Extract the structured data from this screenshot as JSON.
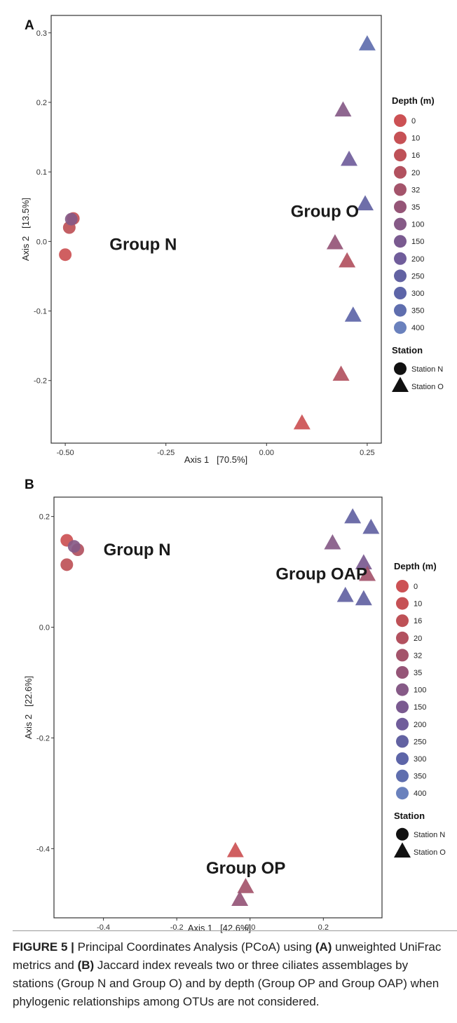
{
  "depth_levels": [
    "0",
    "10",
    "16",
    "20",
    "32",
    "35",
    "100",
    "150",
    "200",
    "250",
    "300",
    "350",
    "400"
  ],
  "depth_colors": [
    "#cc5154",
    "#c65155",
    "#be5157",
    "#b2515f",
    "#a4546b",
    "#955577",
    "#865a87",
    "#7a5a90",
    "#705d9b",
    "#6262a2",
    "#5d65a8",
    "#5f6eae",
    "#6a81bd"
  ],
  "caption": {
    "figure_label": "FIGURE 5 |",
    "text_1": " Principal Coordinates Analysis (PCoA) using ",
    "bold_a": "(A)",
    "text_2": " unweighted UniFrac metrics and ",
    "bold_b": "(B)",
    "text_3": " Jaccard index reveals two or three ciliates assemblages by stations (Group N and Group O) and by depth (Group OP and Group OAP) when phylogenic relationships among OTUs are not considered."
  },
  "chart_data": [
    {
      "panel": "A",
      "type": "scatter",
      "xlabel": "Axis 1   [70.5%]",
      "ylabel": "Axis 2   [13.5%]",
      "xlim": [
        -0.535,
        0.285
      ],
      "ylim": [
        -0.29,
        0.325
      ],
      "xticks": [
        -0.5,
        -0.25,
        0.0,
        0.25
      ],
      "xtick_labels": [
        "-0.50",
        "-0.25",
        "0.00",
        "0.25"
      ],
      "yticks": [
        -0.2,
        -0.1,
        0.0,
        0.1,
        0.2,
        0.3
      ],
      "ytick_labels": [
        "-0.2",
        "-0.1",
        "0.0",
        "0.1",
        "0.2",
        "0.3"
      ],
      "legend_depth_title": "Depth (m)",
      "legend_station_title": "Station",
      "station_labels": [
        "Station N",
        "Station O"
      ],
      "annotations": [
        {
          "text": "Group N",
          "x": -0.39,
          "y": -0.012
        },
        {
          "text": "Group O",
          "x": 0.06,
          "y": 0.035
        }
      ],
      "points": [
        {
          "station": "N",
          "depth": "0",
          "x": -0.5,
          "y": -0.019
        },
        {
          "station": "N",
          "depth": "16",
          "x": -0.49,
          "y": 0.02
        },
        {
          "station": "N",
          "depth": "10",
          "x": -0.48,
          "y": 0.033
        },
        {
          "station": "N",
          "depth": "100",
          "x": -0.485,
          "y": 0.032
        },
        {
          "station": "O",
          "depth": "350",
          "x": 0.25,
          "y": 0.283
        },
        {
          "station": "O",
          "depth": "100",
          "x": 0.19,
          "y": 0.188
        },
        {
          "station": "O",
          "depth": "200",
          "x": 0.205,
          "y": 0.117
        },
        {
          "station": "O",
          "depth": "250",
          "x": 0.245,
          "y": 0.053
        },
        {
          "station": "O",
          "depth": "35",
          "x": 0.17,
          "y": -0.003
        },
        {
          "station": "O",
          "depth": "20",
          "x": 0.2,
          "y": -0.029
        },
        {
          "station": "O",
          "depth": "300",
          "x": 0.215,
          "y": -0.107
        },
        {
          "station": "O",
          "depth": "20",
          "x": 0.185,
          "y": -0.192
        },
        {
          "station": "O",
          "depth": "0",
          "x": 0.088,
          "y": -0.262
        }
      ]
    },
    {
      "panel": "B",
      "type": "scatter",
      "xlabel": "Axis 1   [42.6%]",
      "ylabel": "Axis 2   [22.6%]",
      "xlim": [
        -0.535,
        0.36
      ],
      "ylim": [
        -0.525,
        0.235
      ],
      "xticks": [
        -0.4,
        -0.2,
        0.0,
        0.2
      ],
      "xtick_labels": [
        "-0.4",
        "-0.2",
        "0.0",
        "0.2"
      ],
      "yticks": [
        -0.4,
        -0.2,
        0.0,
        0.2
      ],
      "ytick_labels": [
        "-0.4",
        "-0.2",
        "0.0",
        "0.2"
      ],
      "legend_depth_title": "Depth (m)",
      "legend_station_title": "Station",
      "station_labels": [
        "Station N",
        "Station O"
      ],
      "annotations": [
        {
          "text": "Group N",
          "x": -0.4,
          "y": 0.13
        },
        {
          "text": "Group OAP",
          "x": 0.07,
          "y": 0.086
        },
        {
          "text": "Group OP",
          "x": -0.12,
          "y": -0.445
        }
      ],
      "points": [
        {
          "station": "N",
          "depth": "0",
          "x": -0.5,
          "y": 0.157
        },
        {
          "station": "N",
          "depth": "16",
          "x": -0.5,
          "y": 0.113
        },
        {
          "station": "N",
          "depth": "20",
          "x": -0.47,
          "y": 0.14
        },
        {
          "station": "N",
          "depth": "100",
          "x": -0.48,
          "y": 0.146
        },
        {
          "station": "O",
          "depth": "250",
          "x": 0.28,
          "y": 0.198
        },
        {
          "station": "O",
          "depth": "250",
          "x": 0.33,
          "y": 0.179
        },
        {
          "station": "O",
          "depth": "100",
          "x": 0.225,
          "y": 0.151
        },
        {
          "station": "O",
          "depth": "150",
          "x": 0.31,
          "y": 0.115
        },
        {
          "station": "O",
          "depth": "32",
          "x": 0.32,
          "y": 0.094
        },
        {
          "station": "O",
          "depth": "250",
          "x": 0.26,
          "y": 0.056
        },
        {
          "station": "O",
          "depth": "250",
          "x": 0.31,
          "y": 0.05
        },
        {
          "station": "O",
          "depth": "0",
          "x": -0.04,
          "y": -0.405
        },
        {
          "station": "O",
          "depth": "32",
          "x": -0.012,
          "y": -0.47
        },
        {
          "station": "O",
          "depth": "35",
          "x": -0.028,
          "y": -0.493
        }
      ]
    }
  ]
}
